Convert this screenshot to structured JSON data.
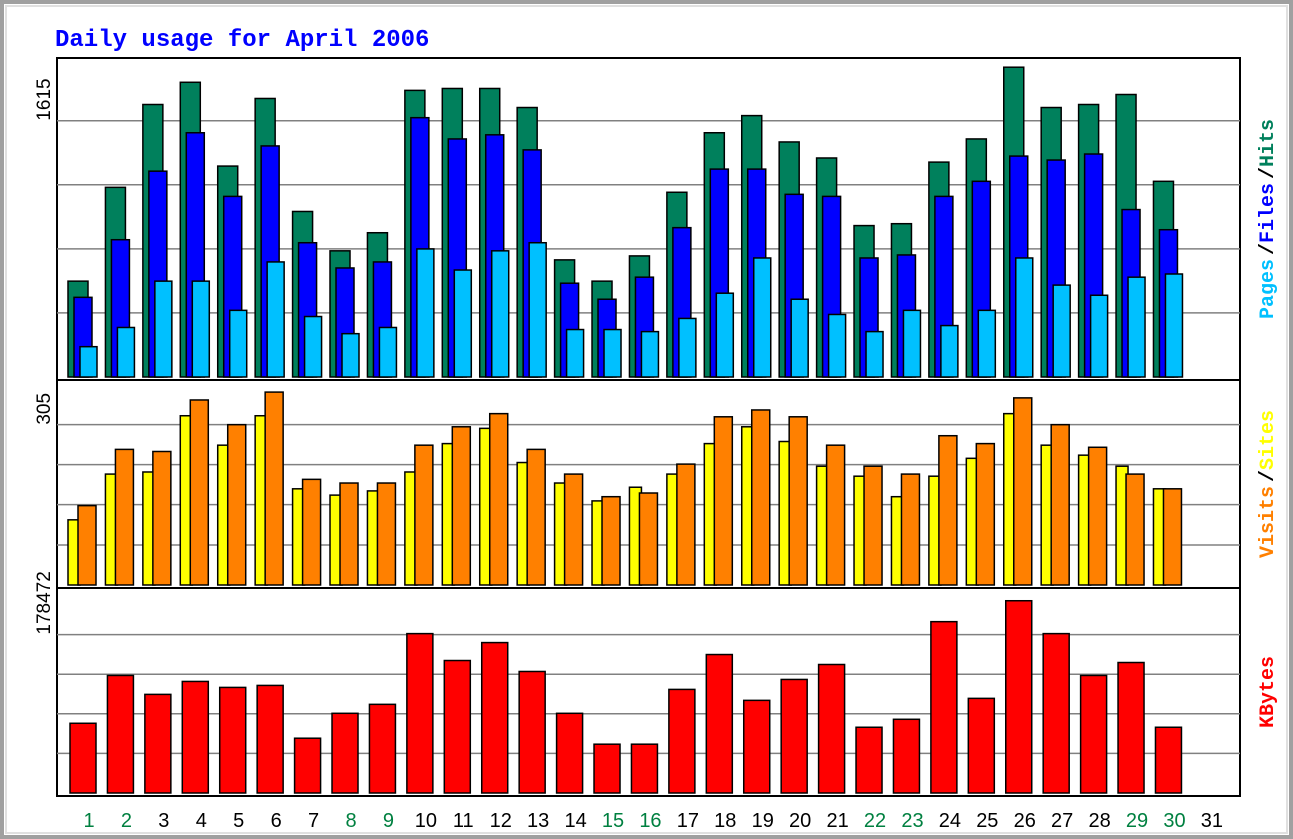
{
  "chart_data": {
    "type": "bar",
    "title": "Daily usage for April 2006",
    "categories": [
      "1",
      "2",
      "3",
      "4",
      "5",
      "6",
      "7",
      "8",
      "9",
      "10",
      "11",
      "12",
      "13",
      "14",
      "15",
      "16",
      "17",
      "18",
      "19",
      "20",
      "21",
      "22",
      "23",
      "24",
      "25",
      "26",
      "27",
      "28",
      "29",
      "30",
      "31"
    ],
    "category_colors": [
      "#008040",
      "#008040",
      "#000000",
      "#000000",
      "#000000",
      "#000000",
      "#000000",
      "#008040",
      "#008040",
      "#000000",
      "#000000",
      "#000000",
      "#000000",
      "#000000",
      "#008040",
      "#008040",
      "#000000",
      "#000000",
      "#000000",
      "#000000",
      "#000000",
      "#008040",
      "#008040",
      "#000000",
      "#000000",
      "#000000",
      "#000000",
      "#000000",
      "#008040",
      "#008040",
      "#000000"
    ],
    "separator": "/",
    "panels": [
      {
        "ylim": [
          0,
          2010
        ],
        "yticks": [
          1615
        ],
        "ygrid": [
          404,
          807,
          1211,
          1615
        ],
        "series": [
          {
            "name": "Hits",
            "color": "#00805c",
            "values": [
              604,
              1195,
              1717,
              1857,
              1329,
              1755,
              1043,
              795,
              909,
              1806,
              1818,
              1818,
              1698,
              738,
              604,
              763,
              1164,
              1539,
              1647,
              1481,
              1380,
              954,
              966,
              1354,
              1500,
              1952,
              1698,
              1717,
              1780,
              1233,
              null
            ]
          },
          {
            "name": "Files",
            "color": "#0000ff",
            "values": [
              502,
              865,
              1297,
              1539,
              1138,
              1456,
              846,
              687,
              725,
              1634,
              1500,
              1526,
              1431,
              591,
              490,
              629,
              941,
              1310,
              1310,
              1151,
              1138,
              750,
              769,
              1138,
              1233,
              1392,
              1367,
              1405,
              1055,
              928,
              null
            ]
          },
          {
            "name": "Pages",
            "color": "#00c0ff",
            "values": [
              191,
              312,
              604,
              604,
              420,
              725,
              381,
              273,
              312,
              807,
              674,
              795,
              846,
              299,
              299,
              286,
              369,
              528,
              750,
              490,
              394,
              286,
              420,
              324,
              420,
              750,
              579,
              515,
              629,
              649,
              null
            ]
          }
        ]
      },
      {
        "ylim": [
          0,
          390
        ],
        "yticks": [
          305
        ],
        "ygrid": [
          76,
          153,
          229,
          305
        ],
        "series": [
          {
            "name": "Sites",
            "color": "#ffff00",
            "values": [
              124,
              211,
              215,
              322,
              266,
              322,
              183,
              171,
              179,
              215,
              269,
              298,
              233,
              194,
              160,
              186,
              211,
              269,
              301,
              273,
              226,
              207,
              168,
              207,
              241,
              326,
              266,
              247,
              226,
              183,
              null
            ]
          },
          {
            "name": "Visits",
            "color": "#ff8000",
            "values": [
              151,
              258,
              254,
              352,
              305,
              367,
              201,
              194,
              194,
              266,
              301,
              326,
              258,
              211,
              168,
              175,
              230,
              320,
              333,
              320,
              266,
              226,
              211,
              284,
              269,
              356,
              305,
              262,
              211,
              183,
              null
            ]
          }
        ]
      },
      {
        "ylim": [
          0,
          231000
        ],
        "yticks": [
          178472
        ],
        "ygrid": [
          44618,
          89236,
          133854,
          178472
        ],
        "series": [
          {
            "name": "KBytes",
            "color": "#ff0000",
            "values": [
              78575,
              132455,
              111128,
              125720,
              118985,
              121230,
              61738,
              89800,
              99903,
              179600,
              149293,
              169498,
              136945,
              89800,
              55003,
              55003,
              116740,
              156028,
              104393,
              127965,
              144803,
              74085,
              83065,
              193070,
              106638,
              216643,
              179600,
              132455,
              147048,
              74085,
              null
            ]
          }
        ]
      }
    ]
  }
}
